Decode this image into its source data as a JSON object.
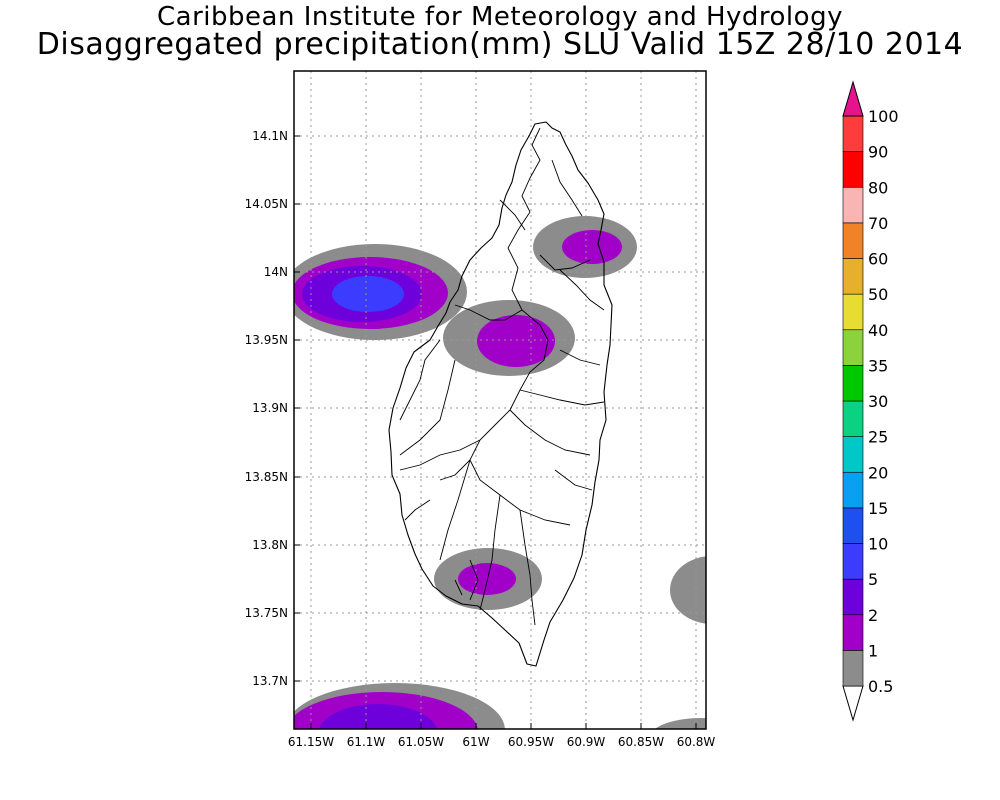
{
  "title_line1": "Caribbean Institute for Meteorology and Hydrology",
  "title_line2": "Disaggregated precipitation(mm) SLU Valid 15Z 28/10 2014",
  "map": {
    "lat_ticks": [
      "14.1N",
      "14.05N",
      "14N",
      "13.95N",
      "13.9N",
      "13.85N",
      "13.8N",
      "13.75N",
      "13.7N"
    ],
    "lon_ticks": [
      "61.15W",
      "61.1W",
      "61.05W",
      "61W",
      "60.95W",
      "60.9W",
      "60.85W",
      "60.8W"
    ],
    "grid": true
  },
  "colorbar": {
    "levels": [
      "0.5",
      "1",
      "2",
      "5",
      "10",
      "15",
      "20",
      "25",
      "30",
      "35",
      "40",
      "50",
      "60",
      "70",
      "80",
      "90",
      "100"
    ],
    "colors": [
      "#ffffff",
      "#8c8c8c",
      "#a000c8",
      "#6e00dc",
      "#3c3cff",
      "#1e50f0",
      "#0aa0f0",
      "#00c8c8",
      "#0ad282",
      "#00c800",
      "#8cd23c",
      "#e6dc32",
      "#e6af2d",
      "#f08228",
      "#fab4b4",
      "#ff0000",
      "#ff3c3c",
      "#e6148c"
    ]
  }
}
